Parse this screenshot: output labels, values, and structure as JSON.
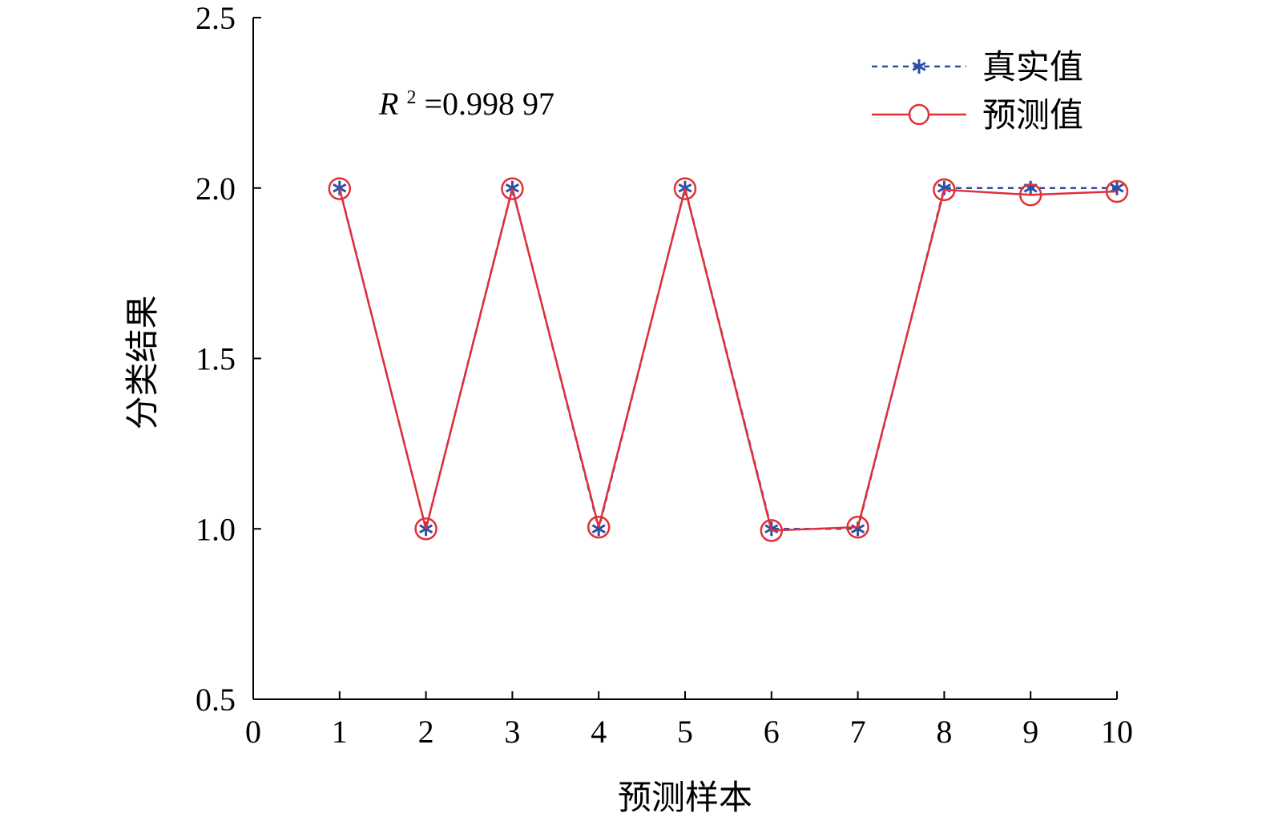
{
  "chart_data": {
    "type": "line",
    "xlabel": "预测样本",
    "ylabel": "分类结果",
    "xlim": [
      0,
      10
    ],
    "ylim": [
      0.5,
      2.5
    ],
    "x_ticks": [
      0,
      1,
      2,
      3,
      4,
      5,
      6,
      7,
      8,
      9,
      10
    ],
    "y_ticks": [
      0.5,
      1.0,
      1.5,
      2.0,
      2.5
    ],
    "y_tick_labels": [
      "0.5",
      "1.0",
      "1.5",
      "2.0",
      "2.5"
    ],
    "annotation": {
      "symbol": "R",
      "superscript": "2",
      "text": "=0.998 97"
    },
    "legend": {
      "position": "top-right"
    },
    "series": [
      {
        "name": "真实值",
        "x": [
          1,
          2,
          3,
          4,
          5,
          6,
          7,
          8,
          9,
          10
        ],
        "values": [
          2,
          1,
          2,
          1,
          2,
          1,
          1,
          2,
          2,
          2
        ],
        "color": "#2e4ea3",
        "line_style": "dashed",
        "marker": "asterisk"
      },
      {
        "name": "预测值",
        "x": [
          1,
          2,
          3,
          4,
          5,
          6,
          7,
          8,
          9,
          10
        ],
        "values": [
          1.998,
          1.0,
          1.998,
          1.005,
          1.998,
          0.995,
          1.005,
          1.995,
          1.98,
          1.99
        ],
        "color": "#e03038",
        "line_style": "solid",
        "marker": "circle"
      }
    ],
    "grid": false
  }
}
